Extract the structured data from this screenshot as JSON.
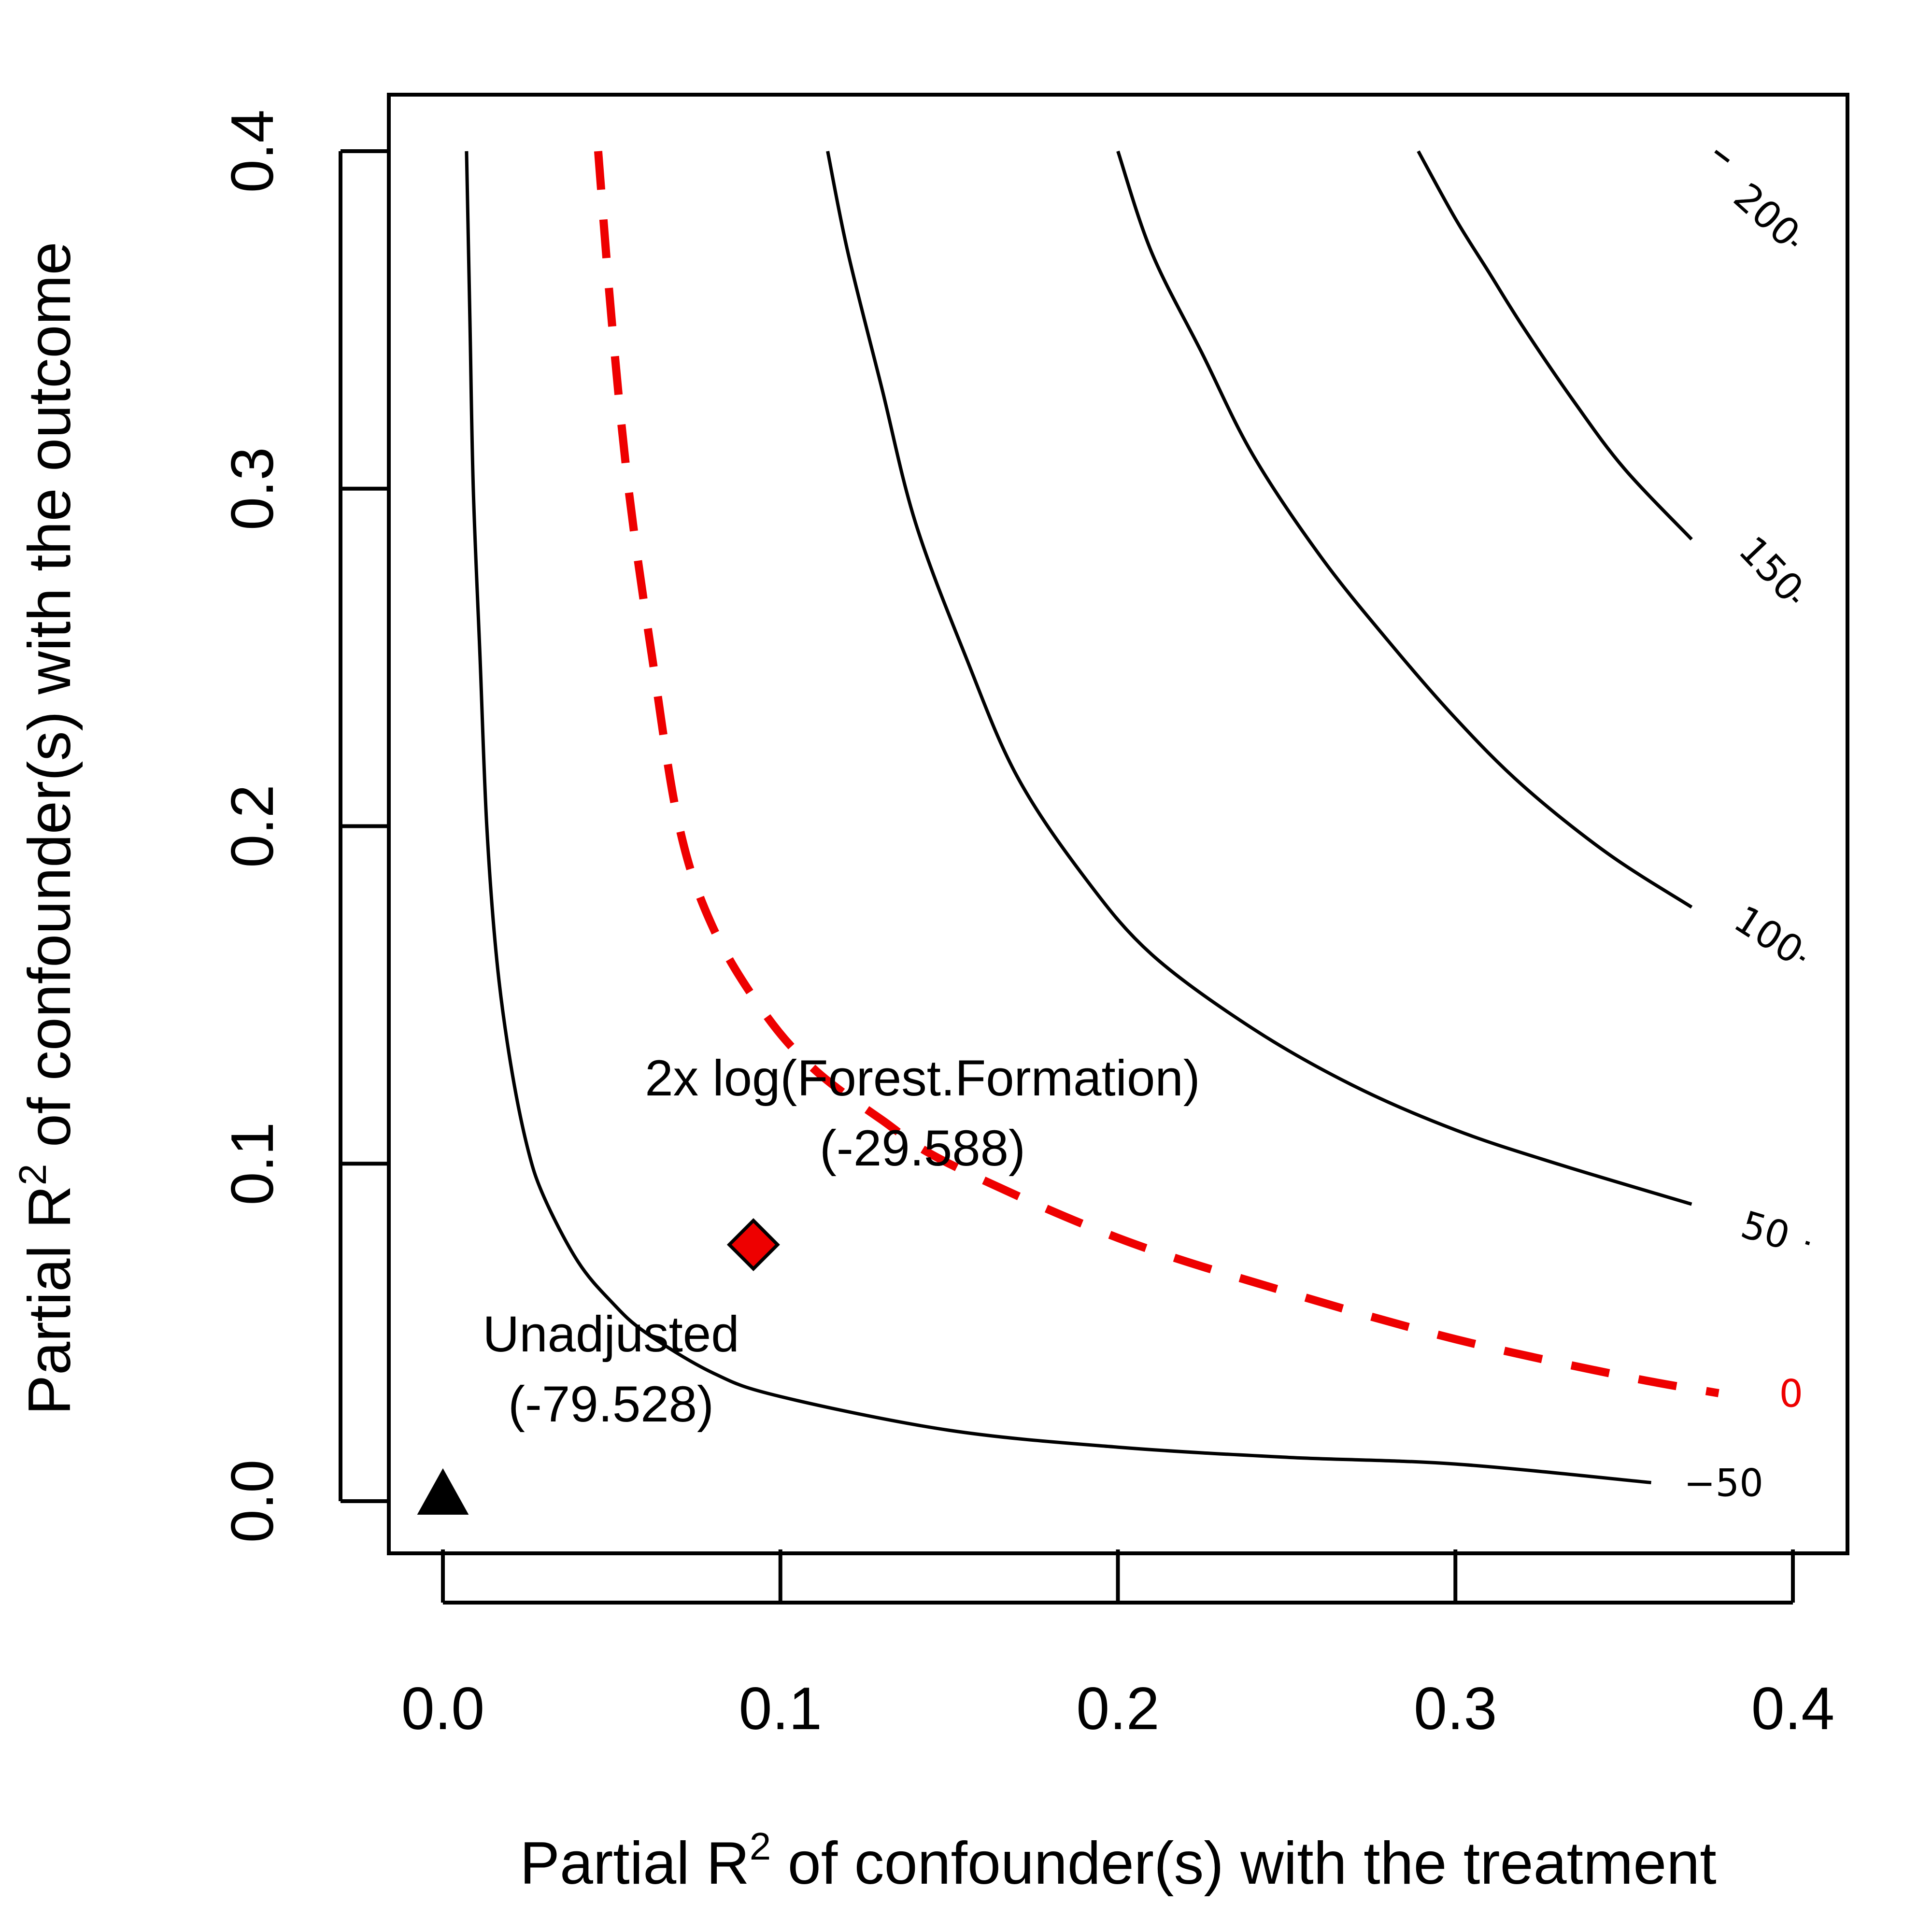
{
  "chart_data": {
    "type": "contour",
    "title": "",
    "xlabel": {
      "pre": "Partial R",
      "sup": "2",
      "post": " of confounder(s) with the treatment"
    },
    "ylabel": {
      "pre": "Partial R",
      "sup": "2",
      "post": " of confounder(s) with the outcome"
    },
    "xlim": [
      0,
      0.4
    ],
    "ylim": [
      0,
      0.4
    ],
    "x_ticks": [
      "0.0",
      "0.1",
      "0.2",
      "0.3",
      "0.4"
    ],
    "y_ticks": [
      "0.0",
      "0.1",
      "0.2",
      "0.3",
      "0.4"
    ],
    "grid": false,
    "contours": [
      {
        "label": "−50",
        "color": "#000000",
        "dashed": false,
        "points": [
          [
            0.007,
            0.4
          ],
          [
            0.008,
            0.35
          ],
          [
            0.009,
            0.3
          ],
          [
            0.011,
            0.25
          ],
          [
            0.013,
            0.2
          ],
          [
            0.016,
            0.16
          ],
          [
            0.02,
            0.13
          ],
          [
            0.025,
            0.105
          ],
          [
            0.03,
            0.09
          ],
          [
            0.04,
            0.071
          ],
          [
            0.05,
            0.059
          ],
          [
            0.06,
            0.05
          ],
          [
            0.08,
            0.038
          ],
          [
            0.1,
            0.031
          ],
          [
            0.15,
            0.021
          ],
          [
            0.2,
            0.016
          ],
          [
            0.25,
            0.013
          ],
          [
            0.3,
            0.011
          ],
          [
            0.358,
            0.0055
          ]
        ]
      },
      {
        "label": "0",
        "color": "#ee0000",
        "dashed": true,
        "points": [
          [
            0.046,
            0.4
          ],
          [
            0.05,
            0.35
          ],
          [
            0.055,
            0.3
          ],
          [
            0.062,
            0.25
          ],
          [
            0.07,
            0.2
          ],
          [
            0.08,
            0.17
          ],
          [
            0.095,
            0.145
          ],
          [
            0.11,
            0.128
          ],
          [
            0.13,
            0.113
          ],
          [
            0.15,
            0.1
          ],
          [
            0.2,
            0.078
          ],
          [
            0.25,
            0.062
          ],
          [
            0.3,
            0.048
          ],
          [
            0.35,
            0.037
          ],
          [
            0.378,
            0.032
          ]
        ]
      },
      {
        "label": "50",
        "color": "#000000",
        "dashed": false,
        "points": [
          [
            0.114,
            0.4
          ],
          [
            0.12,
            0.37
          ],
          [
            0.13,
            0.33
          ],
          [
            0.14,
            0.29
          ],
          [
            0.155,
            0.25
          ],
          [
            0.17,
            0.215
          ],
          [
            0.19,
            0.185
          ],
          [
            0.21,
            0.162
          ],
          [
            0.24,
            0.14
          ],
          [
            0.27,
            0.123
          ],
          [
            0.3,
            0.11
          ],
          [
            0.33,
            0.1
          ],
          [
            0.37,
            0.088
          ]
        ]
      },
      {
        "label": "100",
        "color": "#000000",
        "dashed": false,
        "points": [
          [
            0.2,
            0.4
          ],
          [
            0.21,
            0.37
          ],
          [
            0.225,
            0.34
          ],
          [
            0.24,
            0.31
          ],
          [
            0.26,
            0.28
          ],
          [
            0.28,
            0.255
          ],
          [
            0.3,
            0.232
          ],
          [
            0.32,
            0.212
          ],
          [
            0.345,
            0.192
          ],
          [
            0.37,
            0.176
          ]
        ]
      },
      {
        "label": "150",
        "color": "#000000",
        "dashed": false,
        "points": [
          [
            0.289,
            0.4
          ],
          [
            0.3,
            0.38
          ],
          [
            0.31,
            0.364
          ],
          [
            0.32,
            0.348
          ],
          [
            0.335,
            0.326
          ],
          [
            0.35,
            0.306
          ],
          [
            0.37,
            0.285
          ]
        ]
      },
      {
        "label": "200",
        "color": "#000000",
        "dashed": false,
        "points": [
          [
            0.377,
            0.4
          ],
          [
            0.381,
            0.397
          ]
        ]
      }
    ],
    "markers": [
      {
        "name": "Unadjusted",
        "shape": "triangle",
        "fill": "#000000",
        "x": 0.0,
        "y": 0.002,
        "label_lines": [
          "Unadjusted",
          "(-79.528)"
        ]
      },
      {
        "name": "2x log(Forest.Formation)",
        "shape": "diamond",
        "fill": "#ee0000",
        "x": 0.092,
        "y": 0.076,
        "label_lines": [
          "2x log(Forest.Formation)",
          "(-29.588)"
        ]
      }
    ]
  }
}
